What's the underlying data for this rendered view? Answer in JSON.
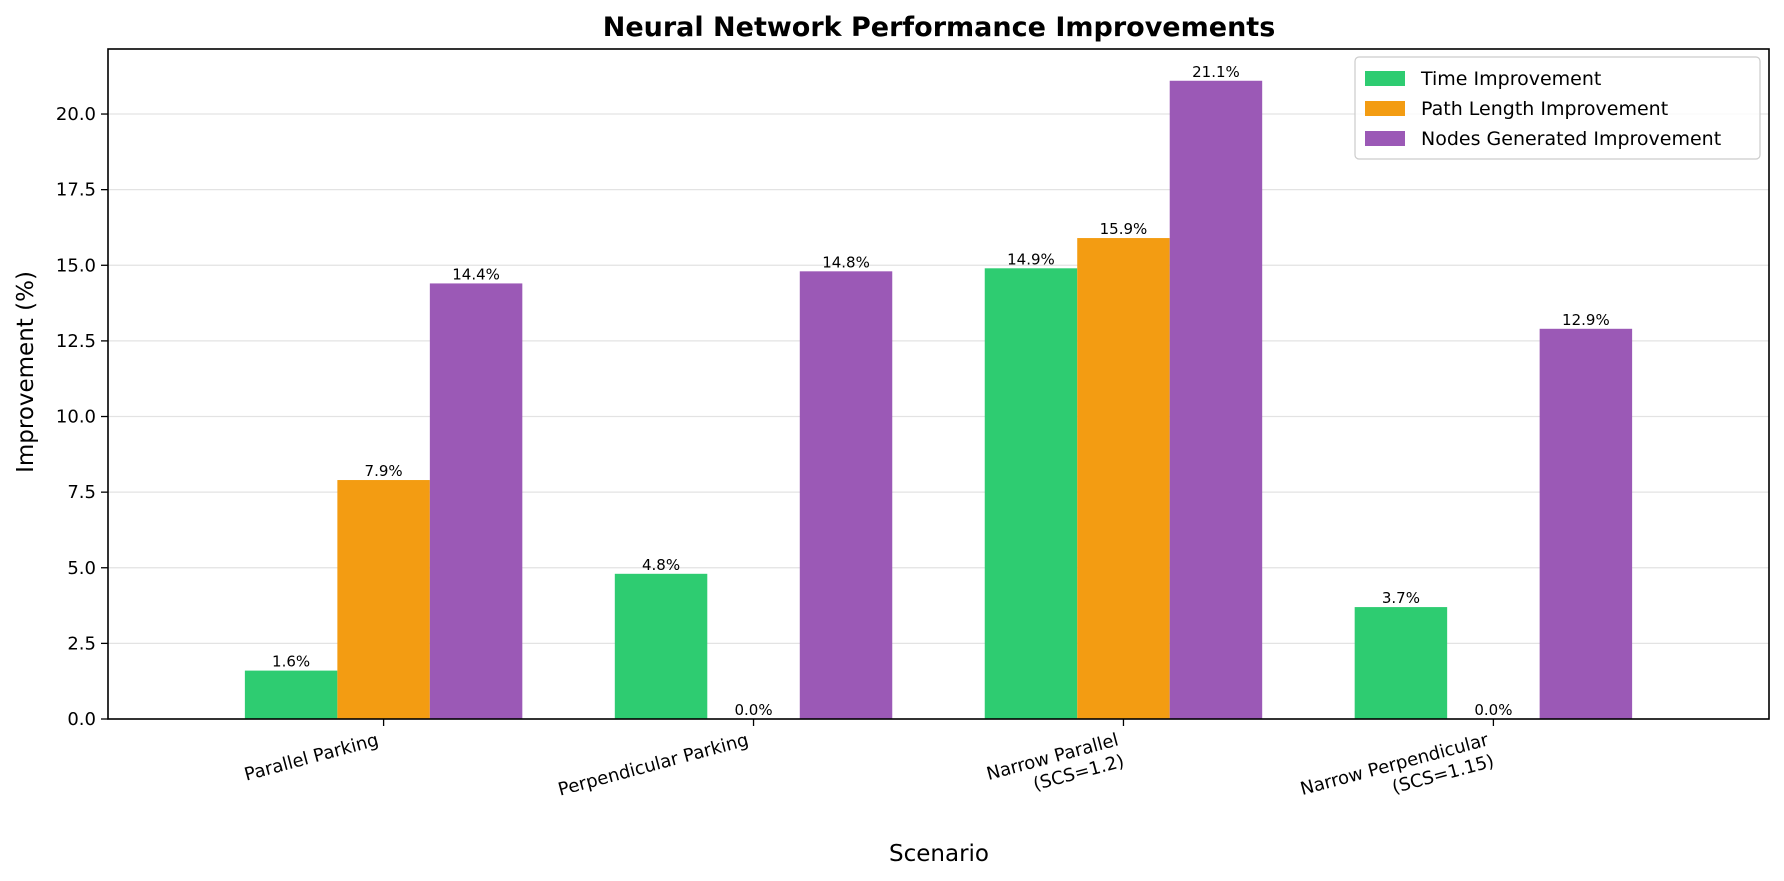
{
  "chart_data": {
    "type": "bar",
    "title": "Neural Network Performance Improvements",
    "xlabel": "Scenario",
    "ylabel": "Improvement (%)",
    "categories": [
      [
        "Parallel Parking"
      ],
      [
        "Perpendicular Parking"
      ],
      [
        "Narrow Parallel",
        "(SCS=1.2)"
      ],
      [
        "Narrow Perpendicular",
        "(SCS=1.15)"
      ]
    ],
    "series": [
      {
        "name": "Time Improvement",
        "color": "#2ecc71",
        "values": [
          1.6,
          4.8,
          14.9,
          3.7
        ],
        "labels": [
          "1.6%",
          "4.8%",
          "14.9%",
          "3.7%"
        ]
      },
      {
        "name": "Path Length Improvement",
        "color": "#f39c12",
        "values": [
          7.9,
          0.0,
          15.9,
          0.0
        ],
        "labels": [
          "7.9%",
          "0.0%",
          "15.9%",
          "0.0%"
        ]
      },
      {
        "name": "Nodes Generated Improvement",
        "color": "#9b59b6",
        "values": [
          14.4,
          14.8,
          21.1,
          12.9
        ],
        "labels": [
          "14.4%",
          "14.8%",
          "21.1%",
          "12.9%"
        ]
      }
    ],
    "yticks": [
      "0.0",
      "2.5",
      "5.0",
      "7.5",
      "10.0",
      "12.5",
      "15.0",
      "17.5",
      "20.0"
    ],
    "ylim": [
      0,
      22.15
    ],
    "grid": "y",
    "legend_position": "top-right"
  }
}
